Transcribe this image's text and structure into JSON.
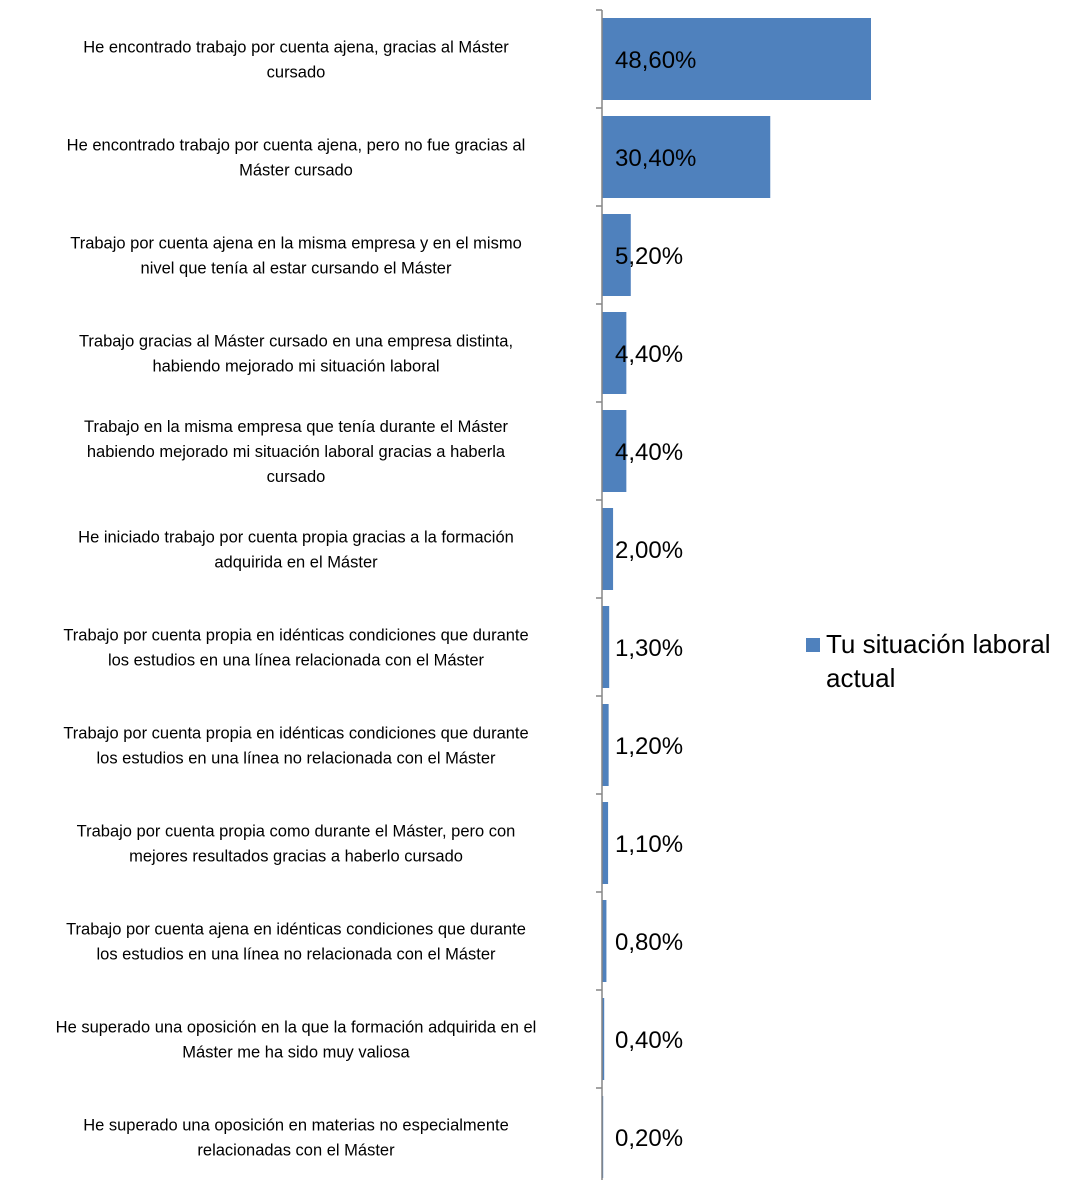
{
  "chart_data": {
    "type": "bar",
    "orientation": "horizontal",
    "categories": [
      "He encontrado trabajo por cuenta ajena, gracias al Máster cursado",
      "He encontrado trabajo por cuenta ajena, pero no fue gracias al Máster cursado",
      "Trabajo por cuenta ajena en la misma empresa y en el mismo nivel que tenía al estar cursando el Máster",
      "Trabajo gracias al Máster cursado en una empresa distinta, habiendo mejorado mi situación laboral",
      "Trabajo en la misma empresa que tenía durante el Máster habiendo mejorado mi situación laboral gracias a haberla cursado",
      "He iniciado trabajo por cuenta propia gracias a la formación adquirida en el Máster",
      "Trabajo por cuenta propia en idénticas condiciones que durante los estudios en una línea relacionada con el Máster",
      "Trabajo por cuenta propia en idénticas condiciones que durante los estudios en una línea no relacionada con el Máster",
      "Trabajo por cuenta propia como durante el Máster, pero con mejores resultados gracias a haberlo cursado",
      "Trabajo por cuenta ajena en idénticas condiciones que durante los estudios en una línea no relacionada con el Máster",
      "He superado una oposición en la que la formación adquirida en el Máster me ha sido muy valiosa",
      "He superado una oposición en materias no especialmente relacionadas con el Máster"
    ],
    "category_lines": [
      [
        "He encontrado trabajo por cuenta ajena, gracias al Máster",
        "cursado"
      ],
      [
        "He encontrado trabajo por cuenta ajena, pero no fue gracias al",
        "Máster cursado"
      ],
      [
        "Trabajo por cuenta ajena en la misma empresa y en el mismo",
        "nivel que tenía al estar cursando el Máster"
      ],
      [
        "Trabajo gracias al Máster cursado en una empresa distinta,",
        "habiendo mejorado mi situación laboral"
      ],
      [
        "Trabajo en la misma empresa que tenía durante el Máster",
        "habiendo mejorado mi situación laboral gracias a haberla",
        "cursado"
      ],
      [
        "He iniciado trabajo por cuenta propia gracias a la formación",
        "adquirida en el Máster"
      ],
      [
        "Trabajo por cuenta propia en idénticas condiciones que durante",
        "los estudios en una línea relacionada con el Máster"
      ],
      [
        "Trabajo por cuenta propia en idénticas condiciones que durante",
        "los estudios en una línea no relacionada con el Máster"
      ],
      [
        "Trabajo por cuenta propia como durante el Máster, pero con",
        "mejores resultados gracias a haberlo cursado"
      ],
      [
        "Trabajo por cuenta ajena en idénticas condiciones que durante",
        "los estudios en una línea no relacionada con el Máster"
      ],
      [
        "He superado una oposición en la que la formación adquirida en el",
        "Máster me ha sido muy valiosa"
      ],
      [
        "He superado una oposición en materias no especialmente",
        "relacionadas con el Máster"
      ]
    ],
    "series": [
      {
        "name": "Tu situación laboral actual",
        "values": [
          48.6,
          30.4,
          5.2,
          4.4,
          4.4,
          2.0,
          1.3,
          1.2,
          1.1,
          0.8,
          0.4,
          0.2
        ],
        "labels": [
          "48,60%",
          "30,40%",
          "5,20%",
          "4,40%",
          "4,40%",
          "2,00%",
          "1,30%",
          "1,20%",
          "1,10%",
          "0,80%",
          "0,40%",
          "0,20%"
        ],
        "color": "#4f81bd"
      }
    ],
    "xlim": [
      0,
      100
    ],
    "grid": false,
    "legend_position": "right",
    "title": "",
    "xlabel": "",
    "ylabel": ""
  },
  "legend": {
    "label": "Tu situación laboral actual"
  },
  "colors": {
    "bar": "#4f81bd",
    "axis": "#868686",
    "text": "#000000"
  }
}
